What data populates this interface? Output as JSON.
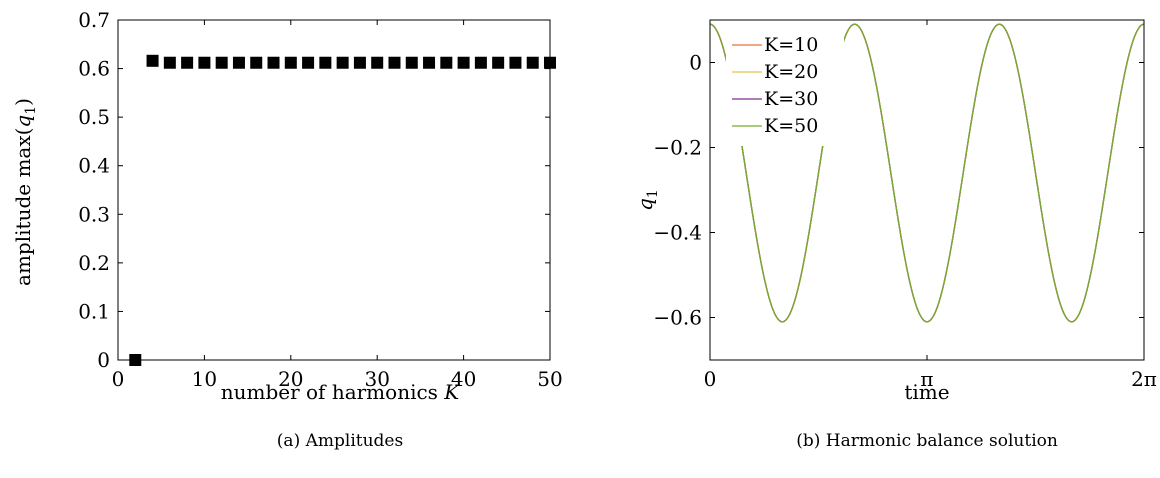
{
  "chart_data": [
    {
      "type": "scatter",
      "caption": "(a) Amplitudes",
      "xlabel": "number of harmonics K",
      "ylabel": "amplitude max(q1)",
      "xlim": [
        0,
        50
      ],
      "ylim": [
        0,
        0.7
      ],
      "xticks": [
        0,
        10,
        20,
        30,
        40,
        50
      ],
      "xtick_labels": [
        "0",
        "10",
        "20",
        "30",
        "40",
        "50"
      ],
      "yticks": [
        0,
        0.1,
        0.2,
        0.3,
        0.4,
        0.5,
        0.6,
        0.7
      ],
      "ytick_labels": [
        "0",
        "0.1",
        "0.2",
        "0.3",
        "0.4",
        "0.5",
        "0.6",
        "0.7"
      ],
      "marker": "square",
      "color": "#000000",
      "x": [
        2,
        4,
        6,
        8,
        10,
        12,
        14,
        16,
        18,
        20,
        22,
        24,
        26,
        28,
        30,
        32,
        34,
        36,
        38,
        40,
        42,
        44,
        46,
        48,
        50
      ],
      "y": [
        0,
        0.616,
        0.612,
        0.612,
        0.612,
        0.612,
        0.612,
        0.612,
        0.612,
        0.612,
        0.612,
        0.612,
        0.612,
        0.612,
        0.612,
        0.612,
        0.612,
        0.612,
        0.612,
        0.612,
        0.612,
        0.612,
        0.612,
        0.612,
        0.612
      ]
    },
    {
      "type": "line",
      "caption": "(b) Harmonic balance solution",
      "xlabel": "time",
      "ylabel": "q1",
      "xlim": [
        0,
        6.2832
      ],
      "ylim": [
        -0.7,
        0.1
      ],
      "xticks": [
        0,
        3.1416,
        6.2832
      ],
      "xtick_labels": [
        "0",
        "π",
        "2π"
      ],
      "yticks": [
        0,
        -0.2,
        -0.4,
        -0.6
      ],
      "ytick_labels": [
        "0",
        "−0.2",
        "−0.4",
        "−0.6"
      ],
      "legend_position": "top-left",
      "signal": {
        "offset": -0.26,
        "amplitude": 0.35,
        "cycles": 3
      },
      "series": [
        {
          "name": "K=10",
          "color": "#e8743b"
        },
        {
          "name": "K=20",
          "color": "#e8c547"
        },
        {
          "name": "K=30",
          "color": "#7e2f8e"
        },
        {
          "name": "K=50",
          "color": "#77ac30"
        }
      ]
    }
  ]
}
